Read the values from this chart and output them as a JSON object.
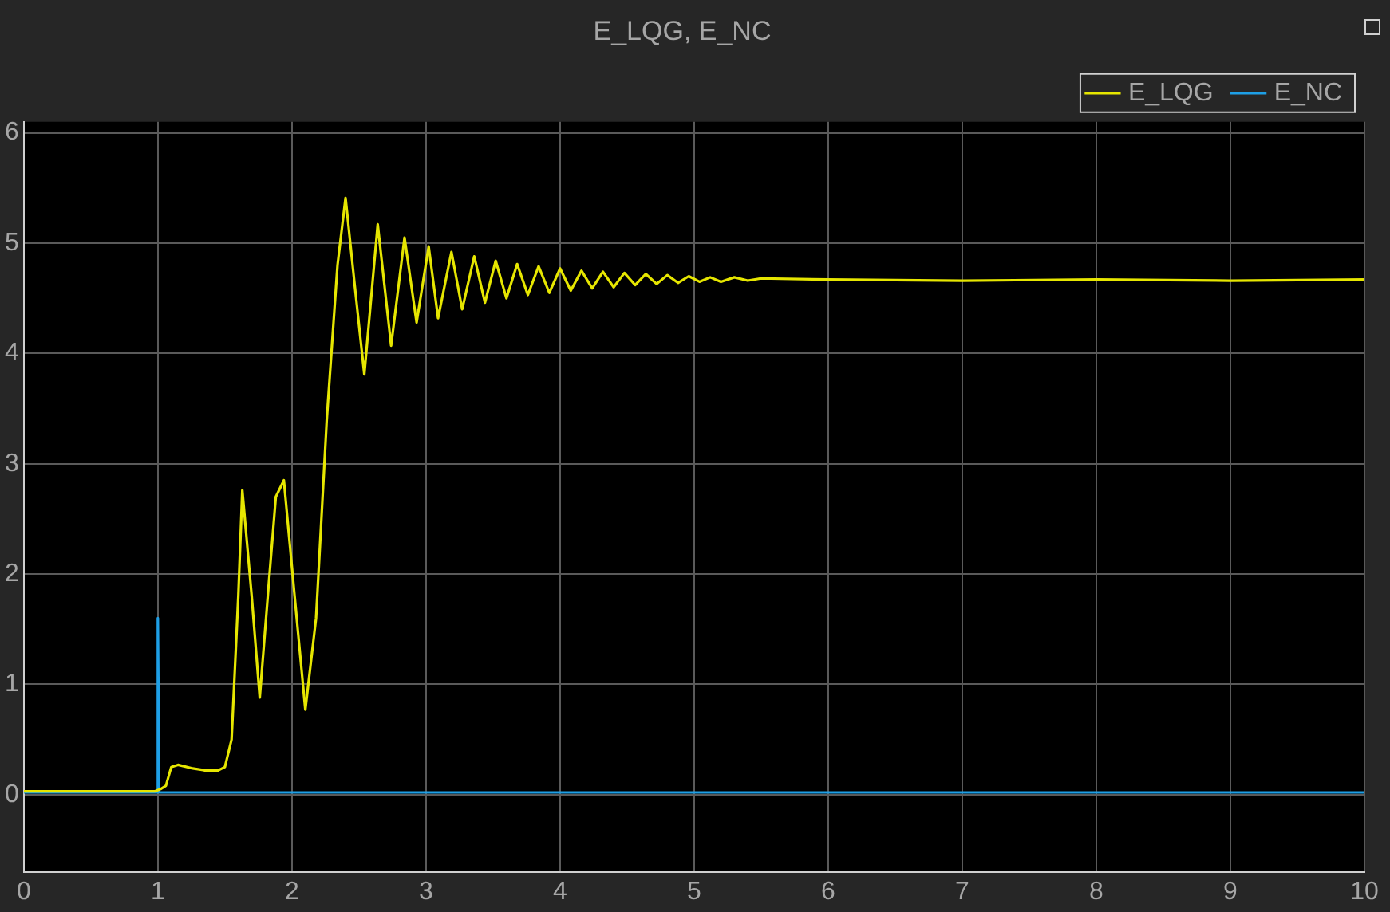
{
  "chart_data": {
    "type": "line",
    "title": "E_LQG, E_NC",
    "xlim": [
      0,
      10
    ],
    "xticks": [
      0,
      1,
      2,
      3,
      4,
      5,
      6,
      7,
      8,
      9,
      10
    ],
    "ylim": [
      -0.7,
      6.1
    ],
    "yticks": [
      0,
      1,
      2,
      3,
      4,
      5,
      6
    ],
    "grid": true,
    "legend": "top right",
    "marker": "none",
    "line_style": "solid",
    "series": [
      {
        "name": "E_LQG",
        "color": "#e6e600",
        "x": [
          0,
          0.98,
          1.02,
          1.06,
          1.1,
          1.15,
          1.25,
          1.35,
          1.45,
          1.5,
          1.55,
          1.6,
          1.63,
          1.7,
          1.76,
          1.82,
          1.88,
          1.94,
          2.02,
          2.1,
          2.18,
          2.26,
          2.34,
          2.4,
          2.47,
          2.54,
          2.64,
          2.74,
          2.84,
          2.93,
          3.02,
          3.09,
          3.19,
          3.27,
          3.36,
          3.44,
          3.52,
          3.6,
          3.68,
          3.76,
          3.84,
          3.92,
          4.0,
          4.08,
          4.16,
          4.24,
          4.32,
          4.4,
          4.48,
          4.56,
          4.64,
          4.72,
          4.8,
          4.88,
          4.96,
          5.04,
          5.12,
          5.2,
          5.3,
          5.4,
          5.5,
          6,
          7,
          8,
          9,
          10
        ],
        "values": [
          0.03,
          0.03,
          0.05,
          0.08,
          0.25,
          0.27,
          0.24,
          0.22,
          0.22,
          0.25,
          0.5,
          1.8,
          2.76,
          1.8,
          0.88,
          1.8,
          2.7,
          2.85,
          1.8,
          0.77,
          1.6,
          3.4,
          4.8,
          5.41,
          4.6,
          3.81,
          5.17,
          4.07,
          5.05,
          4.28,
          4.97,
          4.32,
          4.92,
          4.4,
          4.88,
          4.46,
          4.84,
          4.5,
          4.81,
          4.53,
          4.79,
          4.55,
          4.77,
          4.57,
          4.75,
          4.59,
          4.74,
          4.6,
          4.73,
          4.62,
          4.72,
          4.63,
          4.71,
          4.64,
          4.7,
          4.65,
          4.69,
          4.65,
          4.69,
          4.66,
          4.68,
          4.67,
          4.66,
          4.67,
          4.66,
          4.67
        ]
      },
      {
        "name": "E_NC",
        "color": "#1e9fe6",
        "x": [
          0,
          0.99,
          1.0,
          1.01,
          2,
          3,
          4,
          5,
          6,
          7,
          8,
          9,
          10
        ],
        "values": [
          0.02,
          0.02,
          1.6,
          0.02,
          0.02,
          0.02,
          0.02,
          0.02,
          0.02,
          0.02,
          0.02,
          0.02,
          0.02
        ]
      }
    ]
  }
}
